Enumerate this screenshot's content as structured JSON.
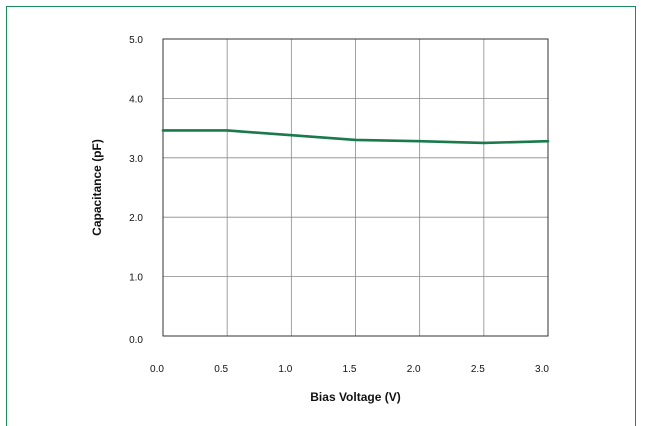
{
  "colors": {
    "frame": "#1a8c5a",
    "grid": "#8a8a8a",
    "series": "#1a7a4c",
    "text": "#111111"
  },
  "chart_data": {
    "type": "line",
    "xlabel": "Bias Voltage (V)",
    "ylabel": "Capacitance (pF)",
    "xlim": [
      0,
      3.0
    ],
    "ylim": [
      0,
      5.0
    ],
    "x_ticks": [
      "0.0",
      "0.5",
      "1.0",
      "1.5",
      "2.0",
      "2.5",
      "3.0"
    ],
    "y_ticks": [
      "0.0",
      "1.0",
      "2.0",
      "3.0",
      "4.0",
      "5.0"
    ],
    "grid": true,
    "series": [
      {
        "color": "#1a7a4c",
        "x": [
          0.0,
          0.5,
          1.0,
          1.5,
          2.0,
          2.5,
          3.0
        ],
        "y": [
          3.46,
          3.46,
          3.38,
          3.3,
          3.28,
          3.25,
          3.28
        ]
      }
    ]
  }
}
